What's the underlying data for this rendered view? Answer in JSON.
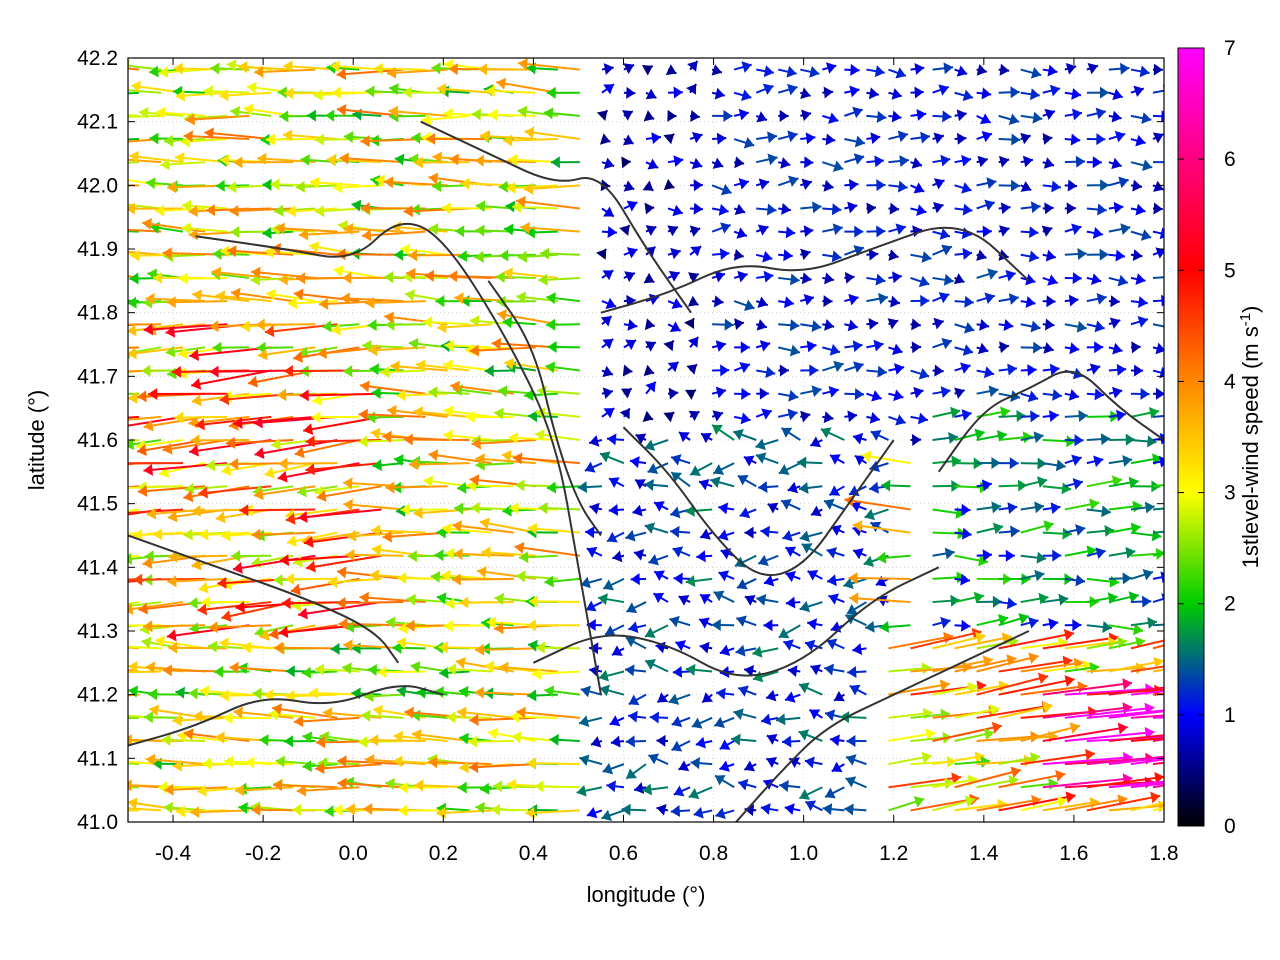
{
  "chart_data": {
    "type": "vector-field",
    "xlabel": "longitude (°)",
    "ylabel": "latitude (°)",
    "xlim": [
      -0.5,
      1.8
    ],
    "ylim": [
      41.0,
      42.2
    ],
    "xticks": [
      "-0.4",
      "-0.2",
      "0.0",
      "0.2",
      "0.4",
      "0.6",
      "0.8",
      "1.0",
      "1.2",
      "1.4",
      "1.6",
      "1.8"
    ],
    "yticks": [
      "41.0",
      "41.1",
      "41.2",
      "41.3",
      "41.4",
      "41.5",
      "41.6",
      "41.7",
      "41.8",
      "41.9",
      "42.0",
      "42.1",
      "42.2"
    ],
    "grid": true,
    "colorbar": {
      "label_main": "1stlevel-wind speed (m s",
      "label_sup": "-1",
      "label_end": ")",
      "range": [
        0,
        7
      ],
      "ticks": [
        "0",
        "1",
        "2",
        "3",
        "4",
        "5",
        "6",
        "7"
      ],
      "colors": [
        "#000000",
        "#0000ff",
        "#00cc00",
        "#ffff00",
        "#ff8800",
        "#ff0000",
        "#ff00ff"
      ]
    },
    "vector_regions": [
      {
        "lon": [
          -0.5,
          0.55
        ],
        "lat": [
          41.0,
          42.2
        ],
        "u": -2.6,
        "v": 0.1,
        "speed": 3.0
      },
      {
        "lon": [
          -0.5,
          0.1
        ],
        "lat": [
          41.3,
          41.8
        ],
        "u": -3.2,
        "v": -0.3,
        "speed": 3.8
      },
      {
        "lon": [
          0.55,
          1.15
        ],
        "lat": [
          41.6,
          42.2
        ],
        "u": 0.3,
        "v": 0.1,
        "speed": 0.7
      },
      {
        "lon": [
          0.75,
          1.8
        ],
        "lat": [
          41.6,
          42.2
        ],
        "u": 0.8,
        "v": 0.0,
        "speed": 1.0
      },
      {
        "lon": [
          0.55,
          1.2
        ],
        "lat": [
          41.0,
          41.6
        ],
        "u": -0.5,
        "v": 0.0,
        "speed": 1.2
      },
      {
        "lon": [
          1.25,
          1.8
        ],
        "lat": [
          41.3,
          41.65
        ],
        "u": 1.3,
        "v": 0.1,
        "speed": 1.6
      },
      {
        "lon": [
          1.15,
          1.8
        ],
        "lat": [
          41.0,
          41.3
        ],
        "u": 3.0,
        "v": 0.5,
        "speed": 3.5
      },
      {
        "lon": [
          1.5,
          1.8
        ],
        "lat": [
          41.05,
          41.2
        ],
        "u": 5.8,
        "v": 0.6,
        "speed": 6.5
      }
    ],
    "contours": [
      {
        "lon": [
          -0.35,
          -0.15,
          0.0,
          0.1,
          0.2,
          0.35,
          0.45,
          0.5,
          0.55
        ],
        "lat": [
          41.92,
          41.9,
          41.88,
          41.95,
          41.92,
          41.75,
          41.6,
          41.4,
          41.2
        ]
      },
      {
        "lon": [
          0.15,
          0.3,
          0.45,
          0.55,
          0.65,
          0.75
        ],
        "lat": [
          42.1,
          42.05,
          42.0,
          42.02,
          41.9,
          41.8
        ]
      },
      {
        "lon": [
          0.55,
          0.7,
          0.85,
          1.0,
          1.15,
          1.35,
          1.5
        ],
        "lat": [
          41.8,
          41.83,
          41.88,
          41.86,
          41.9,
          41.95,
          41.85
        ]
      },
      {
        "lon": [
          0.6,
          0.7,
          0.8,
          0.9,
          1.0,
          1.1,
          1.2
        ],
        "lat": [
          41.62,
          41.55,
          41.45,
          41.38,
          41.4,
          41.5,
          41.6
        ]
      },
      {
        "lon": [
          -0.5,
          -0.3,
          -0.1,
          0.05,
          0.1
        ],
        "lat": [
          41.45,
          41.4,
          41.35,
          41.3,
          41.25
        ]
      },
      {
        "lon": [
          0.4,
          0.55,
          0.7,
          0.85,
          1.0,
          1.15,
          1.3
        ],
        "lat": [
          41.25,
          41.3,
          41.28,
          41.22,
          41.25,
          41.35,
          41.4
        ]
      },
      {
        "lon": [
          0.85,
          0.95,
          1.05,
          1.2,
          1.35,
          1.5
        ],
        "lat": [
          41.0,
          41.08,
          41.15,
          41.2,
          41.25,
          41.3
        ]
      },
      {
        "lon": [
          1.3,
          1.4,
          1.5,
          1.6,
          1.7,
          1.8
        ],
        "lat": [
          41.55,
          41.65,
          41.68,
          41.72,
          41.65,
          41.6
        ]
      },
      {
        "lon": [
          0.3,
          0.4,
          0.45,
          0.5,
          0.55
        ],
        "lat": [
          41.85,
          41.75,
          41.6,
          41.5,
          41.45
        ]
      },
      {
        "lon": [
          -0.5,
          -0.35,
          -0.2,
          -0.05,
          0.1,
          0.2
        ],
        "lat": [
          41.12,
          41.15,
          41.2,
          41.18,
          41.22,
          41.2
        ]
      }
    ]
  }
}
